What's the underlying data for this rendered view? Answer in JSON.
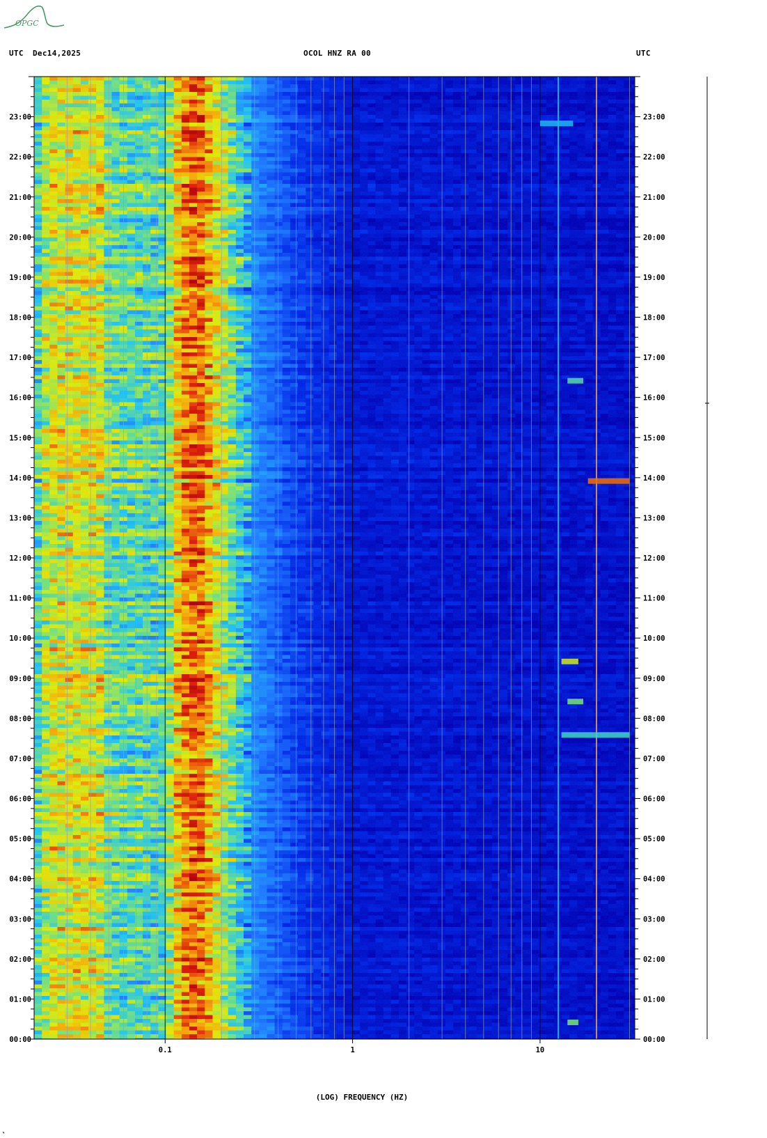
{
  "header": {
    "left_timezone": "UTC",
    "date": "Dec14,2025",
    "station": "OCOL HNZ RA 00",
    "right_timezone": "UTC"
  },
  "logo": {
    "text": "OPGC",
    "color": "#4a9a64"
  },
  "corner_mark": "ᴺ",
  "chart_data": {
    "type": "heatmap",
    "title": "OCOL HNZ RA 00",
    "xlabel": "(LOG) FREQUENCY (HZ)",
    "ylabel": "",
    "x_scale": "log",
    "x_range_hz": [
      0.02,
      32
    ],
    "x_major_ticks": [
      {
        "value": 0.1,
        "label": "0.1"
      },
      {
        "value": 1,
        "label": "1"
      },
      {
        "value": 10,
        "label": "10"
      }
    ],
    "y_range_hours": [
      0,
      24
    ],
    "y_tick_labels": [
      "00:00",
      "01:00",
      "02:00",
      "03:00",
      "04:00",
      "05:00",
      "06:00",
      "07:00",
      "08:00",
      "09:00",
      "10:00",
      "11:00",
      "12:00",
      "13:00",
      "14:00",
      "15:00",
      "16:00",
      "17:00",
      "18:00",
      "19:00",
      "20:00",
      "21:00",
      "22:00",
      "23:00"
    ],
    "colormap": [
      "#0000b4",
      "#0028e6",
      "#1e78ff",
      "#22c8f0",
      "#78e678",
      "#e6f000",
      "#ffa800",
      "#e61e00",
      "#b40000"
    ],
    "intensity_profile": [
      {
        "freq_hz": 0.02,
        "level": 0.38
      },
      {
        "freq_hz": 0.024,
        "level": 0.62
      },
      {
        "freq_hz": 0.045,
        "level": 0.62
      },
      {
        "freq_hz": 0.05,
        "level": 0.48
      },
      {
        "freq_hz": 0.07,
        "level": 0.46
      },
      {
        "freq_hz": 0.1,
        "level": 0.45
      },
      {
        "freq_hz": 0.12,
        "level": 0.74
      },
      {
        "freq_hz": 0.15,
        "level": 0.84
      },
      {
        "freq_hz": 0.19,
        "level": 0.62
      },
      {
        "freq_hz": 0.3,
        "level": 0.28
      },
      {
        "freq_hz": 0.5,
        "level": 0.16
      },
      {
        "freq_hz": 1,
        "level": 0.07
      },
      {
        "freq_hz": 32,
        "level": 0.04
      }
    ],
    "persistent_lines_hz": [
      12.5,
      20
    ],
    "events": [
      {
        "time": "00:25",
        "freq_hz": [
          14,
          16
        ],
        "level": 0.5
      },
      {
        "time": "07:35",
        "freq_hz": [
          13,
          30
        ],
        "level": 0.42
      },
      {
        "time": "08:25",
        "freq_hz": [
          14,
          17
        ],
        "level": 0.5
      },
      {
        "time": "09:25",
        "freq_hz": [
          13,
          16
        ],
        "level": 0.6
      },
      {
        "time": "13:55",
        "freq_hz": [
          18,
          30
        ],
        "level": 0.8
      },
      {
        "time": "16:25",
        "freq_hz": [
          14,
          17
        ],
        "level": 0.45
      },
      {
        "time": "22:50",
        "freq_hz": [
          10,
          15
        ],
        "level": 0.35
      }
    ]
  }
}
